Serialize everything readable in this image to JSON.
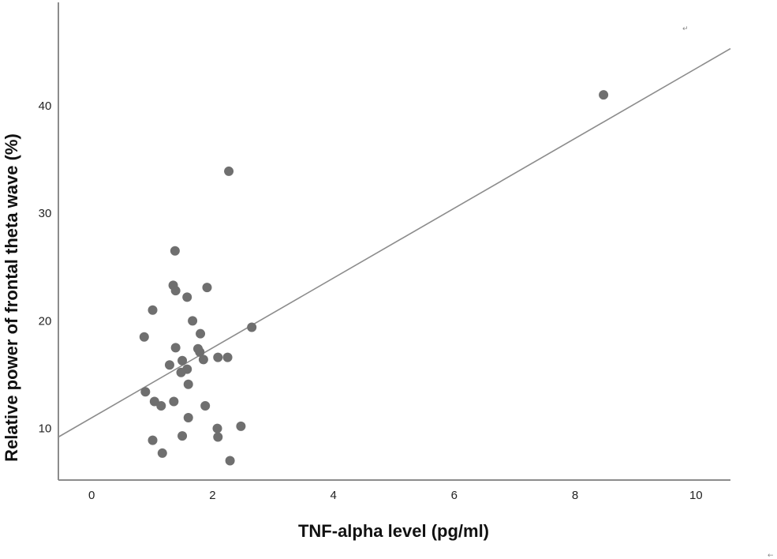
{
  "chart_data": {
    "type": "scatter",
    "title": "",
    "xlabel": "TNF-alpha level (pg/ml)",
    "ylabel": "Relative power of frontal theta wave (%)",
    "xlim": [
      -0.55,
      10.57
    ],
    "ylim": [
      5.2,
      49.6
    ],
    "xticks": [
      0,
      2,
      4,
      6,
      8,
      10
    ],
    "yticks": [
      10,
      20,
      30,
      40
    ],
    "grid": false,
    "legend": null,
    "point_color": "#6f6f6f",
    "line_color": "#8c8c8c",
    "axis_color": "#8c8c8c",
    "fit_line": {
      "x0": -0.55,
      "y0": 9.2,
      "x1": 10.57,
      "y1": 45.3
    },
    "points": [
      {
        "x": 8.47,
        "y": 41.0
      },
      {
        "x": 2.27,
        "y": 33.9
      },
      {
        "x": 1.38,
        "y": 26.5
      },
      {
        "x": 1.35,
        "y": 23.3
      },
      {
        "x": 1.39,
        "y": 22.8
      },
      {
        "x": 1.91,
        "y": 23.1
      },
      {
        "x": 1.58,
        "y": 22.2
      },
      {
        "x": 1.01,
        "y": 21.0
      },
      {
        "x": 1.67,
        "y": 20.0
      },
      {
        "x": 2.65,
        "y": 19.4
      },
      {
        "x": 0.87,
        "y": 18.5
      },
      {
        "x": 1.8,
        "y": 18.8
      },
      {
        "x": 1.39,
        "y": 17.5
      },
      {
        "x": 1.76,
        "y": 17.4
      },
      {
        "x": 1.79,
        "y": 17.1
      },
      {
        "x": 1.85,
        "y": 16.4
      },
      {
        "x": 2.09,
        "y": 16.6
      },
      {
        "x": 2.25,
        "y": 16.6
      },
      {
        "x": 1.5,
        "y": 16.3
      },
      {
        "x": 1.29,
        "y": 15.9
      },
      {
        "x": 1.58,
        "y": 15.5
      },
      {
        "x": 1.48,
        "y": 15.2
      },
      {
        "x": 1.6,
        "y": 14.1
      },
      {
        "x": 0.89,
        "y": 13.4
      },
      {
        "x": 1.04,
        "y": 12.5
      },
      {
        "x": 1.15,
        "y": 12.1
      },
      {
        "x": 1.36,
        "y": 12.5
      },
      {
        "x": 1.88,
        "y": 12.1
      },
      {
        "x": 1.6,
        "y": 11.0
      },
      {
        "x": 2.08,
        "y": 10.0
      },
      {
        "x": 2.47,
        "y": 10.2
      },
      {
        "x": 2.09,
        "y": 9.2
      },
      {
        "x": 1.5,
        "y": 9.3
      },
      {
        "x": 1.01,
        "y": 8.9
      },
      {
        "x": 1.17,
        "y": 7.7
      },
      {
        "x": 2.29,
        "y": 7.0
      }
    ]
  },
  "marks": {
    "return_mark": "↵",
    "arrow_mark": "←"
  }
}
